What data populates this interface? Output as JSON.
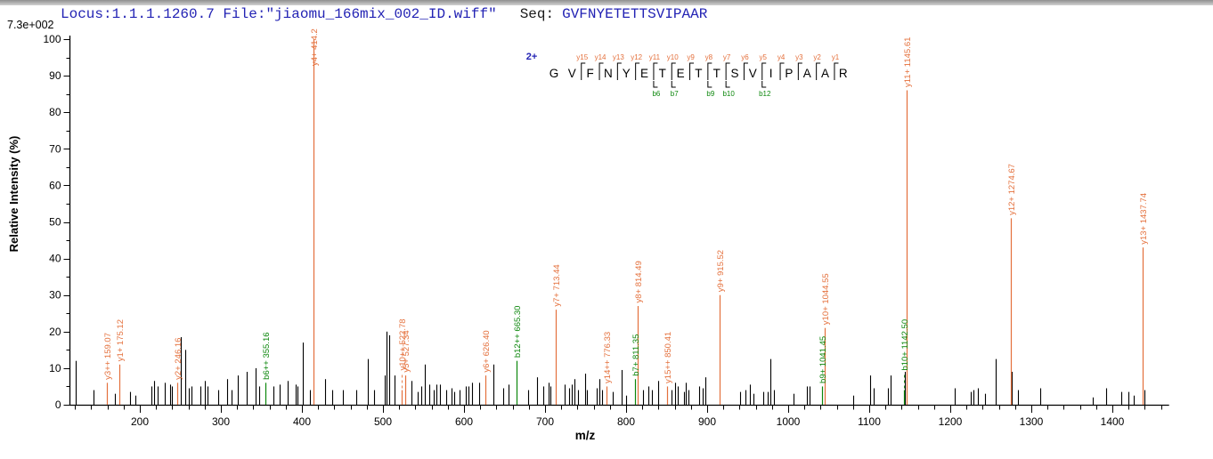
{
  "header": {
    "locus_file": "Locus:1.1.1.1260.7 File:\"jiaomu_166mix_002_ID.wiff\"",
    "seq_label": "Seq:",
    "seq_value": "GVFNYETETTSVIPAAR"
  },
  "colors": {
    "header_blue": "#2323b4",
    "y_ion": "#e4703c",
    "b_ion": "#0c870c",
    "peak_black": "#000000"
  },
  "sequence_panel": {
    "charge_label": "2+",
    "residues": [
      "G",
      "V",
      "F",
      "N",
      "Y",
      "E",
      "T",
      "E",
      "T",
      "T",
      "S",
      "V",
      "I",
      "P",
      "A",
      "A",
      "R"
    ],
    "y_marks": [
      {
        "label": "y15",
        "boundary": 2
      },
      {
        "label": "y14",
        "boundary": 3
      },
      {
        "label": "y13",
        "boundary": 4
      },
      {
        "label": "y12",
        "boundary": 5
      },
      {
        "label": "y11",
        "boundary": 6
      },
      {
        "label": "y10",
        "boundary": 7
      },
      {
        "label": "y9",
        "boundary": 8
      },
      {
        "label": "y8",
        "boundary": 9
      },
      {
        "label": "y7",
        "boundary": 10
      },
      {
        "label": "y6",
        "boundary": 11
      },
      {
        "label": "y5",
        "boundary": 12
      },
      {
        "label": "y4",
        "boundary": 13
      },
      {
        "label": "y3",
        "boundary": 14
      },
      {
        "label": "y2",
        "boundary": 15
      },
      {
        "label": "y1",
        "boundary": 16
      }
    ],
    "b_marks": [
      {
        "label": "b6",
        "boundary": 6
      },
      {
        "label": "b7",
        "boundary": 7
      },
      {
        "label": "b9",
        "boundary": 9
      },
      {
        "label": "b10",
        "boundary": 10
      },
      {
        "label": "b12",
        "boundary": 12
      }
    ]
  },
  "chart_data": {
    "type": "bar",
    "variant": "ms2-stick-spectrum",
    "title": "",
    "xlabel": "m/z",
    "ylabel": "Relative Intensity (%)",
    "intensity_scale_label": "7.3e+002",
    "xlim": [
      113,
      1470
    ],
    "ylim": [
      0,
      100
    ],
    "grid": false,
    "x_ticks_labeled": [
      200,
      300,
      400,
      500,
      600,
      700,
      800,
      900,
      1000,
      1100,
      1200,
      1300,
      1400
    ],
    "x_minor_tick_step": 20,
    "y_ticks_labeled": [
      0,
      10,
      20,
      30,
      40,
      50,
      60,
      70,
      80,
      90,
      100
    ],
    "y_minor_tick_step": 5,
    "labeled_peaks": [
      {
        "label": "y3++ 159.07",
        "mz": 159.07,
        "intensity": 6,
        "series": "y"
      },
      {
        "label": "y1+ 175.12",
        "mz": 175.12,
        "intensity": 11,
        "series": "y"
      },
      {
        "label": "y2+ 246.16",
        "mz": 246.16,
        "intensity": 6,
        "series": "y"
      },
      {
        "label": "b6++ 355.16",
        "mz": 355.16,
        "intensity": 6,
        "series": "b"
      },
      {
        "label": "y4+ 414.2",
        "mz": 414.2,
        "intensity": 100,
        "series": "y"
      },
      {
        "label": "y10++ 522.78",
        "mz": 522.78,
        "intensity": 4,
        "series": "y",
        "dashed_leader": true
      },
      {
        "label": "y5+ 527.34",
        "mz": 527.34,
        "intensity": 8,
        "series": "y"
      },
      {
        "label": "y6+ 626.40",
        "mz": 626.4,
        "intensity": 8,
        "series": "y"
      },
      {
        "label": "b12++ 665.30",
        "mz": 665.3,
        "intensity": 12,
        "series": "b"
      },
      {
        "label": "y7+ 713.44",
        "mz": 713.44,
        "intensity": 26,
        "series": "y"
      },
      {
        "label": "y14++ 776.33",
        "mz": 776.33,
        "intensity": 5,
        "series": "y"
      },
      {
        "label": "b7+ 811.35",
        "mz": 811.35,
        "intensity": 7,
        "series": "b"
      },
      {
        "label": "y8+ 814.49",
        "mz": 814.49,
        "intensity": 27,
        "series": "y"
      },
      {
        "label": "y15++ 850.41",
        "mz": 850.41,
        "intensity": 5,
        "series": "y"
      },
      {
        "label": "y9+ 915.52",
        "mz": 915.52,
        "intensity": 30,
        "series": "y"
      },
      {
        "label": "b9+ 1041.45",
        "mz": 1041.45,
        "intensity": 5,
        "series": "b"
      },
      {
        "label": "y10+ 1044.55",
        "mz": 1044.55,
        "intensity": 21,
        "series": "y"
      },
      {
        "label": "b10+ 1142.50",
        "mz": 1142.5,
        "intensity": 4,
        "series": "b",
        "dashed_leader": true
      },
      {
        "label": "y11+ 1145.61",
        "mz": 1145.61,
        "intensity": 86,
        "series": "y"
      },
      {
        "label": "y12+ 1274.67",
        "mz": 1274.67,
        "intensity": 51,
        "series": "y"
      },
      {
        "label": "y13+ 1437.74",
        "mz": 1437.74,
        "intensity": 43,
        "series": "y"
      }
    ],
    "background_peaks": [
      [
        121,
        12
      ],
      [
        143,
        4
      ],
      [
        169,
        3
      ],
      [
        188,
        3.5
      ],
      [
        194,
        2.5
      ],
      [
        214,
        5
      ],
      [
        218,
        6.5
      ],
      [
        222,
        5
      ],
      [
        231,
        6
      ],
      [
        237,
        5.5
      ],
      [
        240,
        5
      ],
      [
        250,
        18.5
      ],
      [
        256,
        15
      ],
      [
        260,
        4.5
      ],
      [
        264,
        5
      ],
      [
        275,
        5
      ],
      [
        280,
        6.5
      ],
      [
        283,
        5
      ],
      [
        297,
        4
      ],
      [
        308,
        7
      ],
      [
        313,
        4
      ],
      [
        321,
        8
      ],
      [
        332,
        9
      ],
      [
        343,
        10
      ],
      [
        347,
        5
      ],
      [
        365,
        5
      ],
      [
        372,
        5.5
      ],
      [
        382,
        6.5
      ],
      [
        392,
        5.5
      ],
      [
        395,
        5
      ],
      [
        401,
        17
      ],
      [
        410,
        4
      ],
      [
        429,
        7
      ],
      [
        437,
        4
      ],
      [
        451,
        4
      ],
      [
        467,
        4
      ],
      [
        481,
        12.5
      ],
      [
        489,
        4
      ],
      [
        502,
        8
      ],
      [
        504,
        20
      ],
      [
        508,
        19
      ],
      [
        514,
        8
      ],
      [
        535,
        6.5
      ],
      [
        543,
        3.5
      ],
      [
        547,
        5
      ],
      [
        552,
        11
      ],
      [
        557,
        5.5
      ],
      [
        563,
        4
      ],
      [
        566,
        5.5
      ],
      [
        570,
        5.5
      ],
      [
        578,
        4
      ],
      [
        585,
        4.5
      ],
      [
        588,
        3.5
      ],
      [
        594,
        4
      ],
      [
        602,
        5
      ],
      [
        606,
        5
      ],
      [
        610,
        6
      ],
      [
        619,
        6
      ],
      [
        636,
        11
      ],
      [
        648,
        4.5
      ],
      [
        655,
        5.5
      ],
      [
        679,
        4
      ],
      [
        690,
        7.5
      ],
      [
        698,
        5
      ],
      [
        704,
        6
      ],
      [
        707,
        5
      ],
      [
        724,
        5.5
      ],
      [
        730,
        4.5
      ],
      [
        733,
        5.5
      ],
      [
        736,
        7
      ],
      [
        741,
        4
      ],
      [
        749,
        8.5
      ],
      [
        752,
        4
      ],
      [
        764,
        4.5
      ],
      [
        767,
        7
      ],
      [
        770,
        4
      ],
      [
        783,
        3.5
      ],
      [
        794,
        9.5
      ],
      [
        800,
        2.5
      ],
      [
        821,
        4
      ],
      [
        827,
        5
      ],
      [
        832,
        4
      ],
      [
        840,
        6.5
      ],
      [
        856,
        4
      ],
      [
        860,
        6
      ],
      [
        864,
        5
      ],
      [
        871,
        3.5
      ],
      [
        874,
        6
      ],
      [
        877,
        4
      ],
      [
        890,
        5
      ],
      [
        895,
        4.5
      ],
      [
        898,
        7.5
      ],
      [
        941,
        3.5
      ],
      [
        947,
        4
      ],
      [
        953,
        5.5
      ],
      [
        957,
        3
      ],
      [
        969,
        3.5
      ],
      [
        975,
        3.5
      ],
      [
        978,
        12.5
      ],
      [
        982,
        4
      ],
      [
        1007,
        3
      ],
      [
        1023,
        5
      ],
      [
        1026,
        5
      ],
      [
        1080,
        2.5
      ],
      [
        1101,
        8
      ],
      [
        1106,
        4.5
      ],
      [
        1123,
        4.5
      ],
      [
        1126,
        8
      ],
      [
        1144,
        9
      ],
      [
        1205,
        4.5
      ],
      [
        1225,
        3.5
      ],
      [
        1229,
        4
      ],
      [
        1234,
        4.5
      ],
      [
        1243,
        3
      ],
      [
        1256,
        12.5
      ],
      [
        1276,
        9
      ],
      [
        1283,
        4
      ],
      [
        1311,
        4.5
      ],
      [
        1376,
        2
      ],
      [
        1392,
        4.5
      ],
      [
        1411,
        3.5
      ],
      [
        1420,
        3.5
      ],
      [
        1426,
        2.5
      ],
      [
        1440,
        4
      ]
    ]
  }
}
